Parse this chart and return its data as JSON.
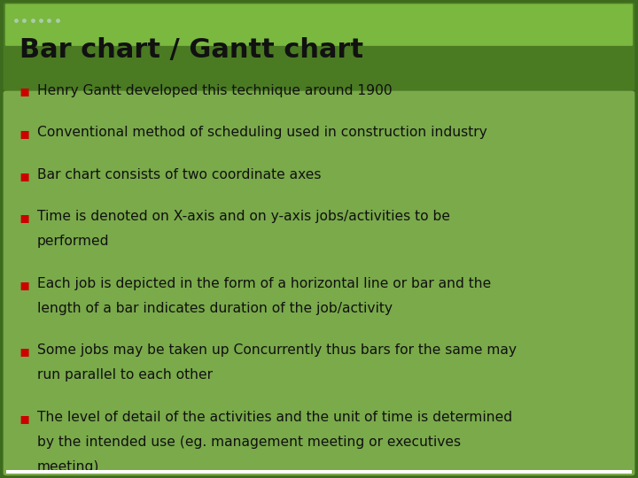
{
  "title": "Bar chart / Gantt chart",
  "bullet_color": "#cc0000",
  "text_color": "#111111",
  "title_text_color": "#111111",
  "bullet_points": [
    "Henry Gantt developed this technique around 1900",
    "Conventional method of scheduling used in construction industry",
    "Bar chart consists of two coordinate axes",
    "Time is denoted on X-axis and on y-axis jobs/activities to be\nperformed",
    "Each job is depicted in the form of a horizontal line or bar and the\nlength of a bar indicates duration of the job/activity",
    "Some jobs may be taken up Concurrently thus bars for the same may\nrun parallel to each other",
    "The level of detail of the activities and the unit of time is determined\nby the intended use (eg. management meeting or executives\nmeeting)"
  ],
  "fig_width": 7.2,
  "fig_height": 5.4,
  "dpi": 100,
  "bg_color": "#3d6b1e",
  "title_bg_dark": "#4a7a22",
  "title_bg_light": "#7ab840",
  "body_bg": "#7aaa4a",
  "dot_color": "#aaccaa"
}
